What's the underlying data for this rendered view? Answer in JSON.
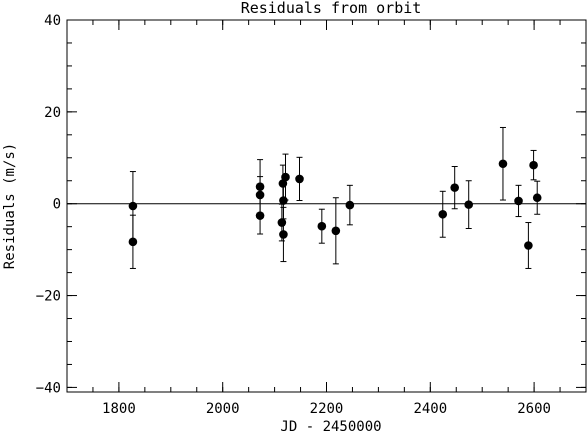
{
  "chart_data": {
    "type": "scatter",
    "title": "Residuals from  orbit",
    "xlabel": "JD - 2450000",
    "ylabel": "Residuals (m/s)",
    "xlim": [
      1700,
      2700
    ],
    "ylim": [
      -41,
      40
    ],
    "x_ticks": [
      1800,
      2000,
      2200,
      2400,
      2600
    ],
    "x_tick_labels": [
      "1800",
      "2000",
      "2200",
      "2400",
      "2600"
    ],
    "y_ticks": [
      40,
      20,
      0,
      -20,
      -40
    ],
    "y_tick_labels": [
      "40",
      "20",
      "0",
      "−20",
      "−40"
    ],
    "x_minor_step": 50,
    "y_minor_step": 5,
    "reference_line_y": 0,
    "grid": false,
    "legend": "none",
    "series": [
      {
        "points": [
          {
            "x": 1827,
            "y": -0.5,
            "err": 7.5
          },
          {
            "x": 1827,
            "y": -8.3,
            "err": 5.8
          },
          {
            "x": 2072,
            "y": 3.7,
            "err": 5.9
          },
          {
            "x": 2072,
            "y": 1.9,
            "err": 4.0
          },
          {
            "x": 2072,
            "y": -2.6,
            "err": 4.0
          },
          {
            "x": 2114,
            "y": -4.1,
            "err": 4.0
          },
          {
            "x": 2116,
            "y": 4.4,
            "err": 4.0
          },
          {
            "x": 2117,
            "y": 0.7,
            "err": 4.0
          },
          {
            "x": 2117,
            "y": -6.7,
            "err": 5.9
          },
          {
            "x": 2121,
            "y": 5.8,
            "err": 5.0
          },
          {
            "x": 2148,
            "y": 5.4,
            "err": 4.7
          },
          {
            "x": 2191,
            "y": -4.9,
            "err": 3.7
          },
          {
            "x": 2218,
            "y": -5.9,
            "err": 7.2
          },
          {
            "x": 2245,
            "y": -0.3,
            "err": 4.3
          },
          {
            "x": 2424,
            "y": -2.3,
            "err": 5.0
          },
          {
            "x": 2447,
            "y": 3.5,
            "err": 4.6
          },
          {
            "x": 2474,
            "y": -0.2,
            "err": 5.2
          },
          {
            "x": 2540,
            "y": 8.7,
            "err": 7.9
          },
          {
            "x": 2570,
            "y": 0.6,
            "err": 3.4
          },
          {
            "x": 2589,
            "y": -9.1,
            "err": 5.0
          },
          {
            "x": 2599,
            "y": 8.4,
            "err": 3.2
          },
          {
            "x": 2606,
            "y": 1.3,
            "err": 3.6
          }
        ]
      }
    ]
  }
}
